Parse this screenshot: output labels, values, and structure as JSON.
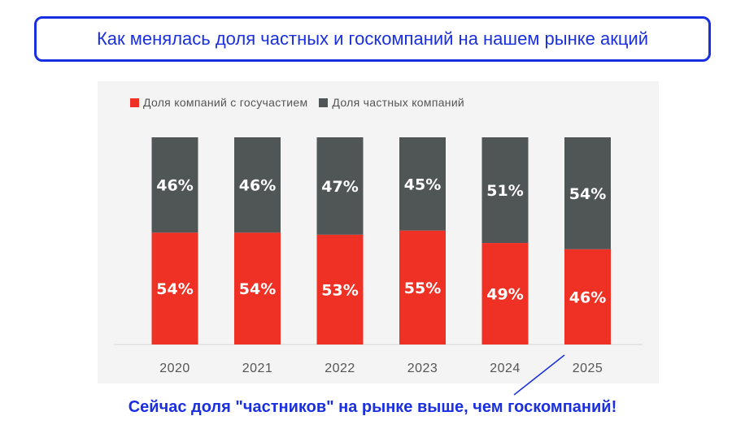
{
  "title": "Как менялась доля частных и госкомпаний на нашем рынке акций",
  "note": "Сейчас доля \"частников\" на рынке выше, чем госкомпаний!",
  "colors": {
    "state": "#ee3124",
    "private": "#505556",
    "accent": "#1a2fe0"
  },
  "chart_data": {
    "type": "bar",
    "stacked": true,
    "categories": [
      "2020",
      "2021",
      "2022",
      "2023",
      "2024",
      "2025"
    ],
    "series": [
      {
        "name": "Доля компаний с госучастием",
        "values": [
          54,
          54,
          53,
          55,
          49,
          46
        ],
        "labels": [
          "54%",
          "54%",
          "53%",
          "55%",
          "49%",
          "46%"
        ]
      },
      {
        "name": "Доля частных компаний",
        "values": [
          46,
          46,
          47,
          45,
          51,
          54
        ],
        "labels": [
          "46%",
          "46%",
          "47%",
          "45%",
          "51%",
          "54%"
        ]
      }
    ],
    "ylim": [
      0,
      100
    ],
    "grid": false,
    "legend_position": "top-left"
  }
}
